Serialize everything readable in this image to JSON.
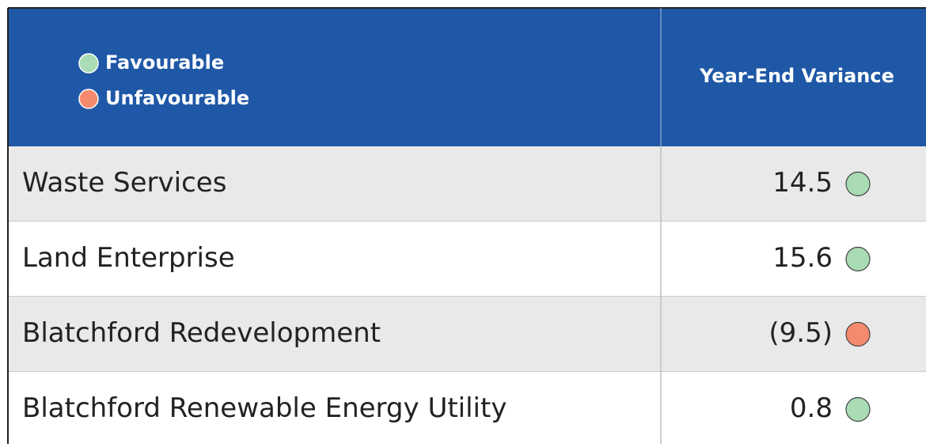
{
  "header": {
    "legend": [
      {
        "label": "Favourable",
        "color": "#a9dbb4"
      },
      {
        "label": "Unfavourable",
        "color": "#f58a6e"
      }
    ],
    "column": "Year-End Variance"
  },
  "table": {
    "rows": [
      {
        "name": "Waste Services",
        "value": "14.5",
        "color": "#a9dbb4"
      },
      {
        "name": "Land Enterprise",
        "value": "15.6",
        "color": "#a9dbb4"
      },
      {
        "name": "Blatchford Redevelopment",
        "value": "(9.5)",
        "color": "#f58a6e"
      },
      {
        "name": "Blatchford Renewable Energy Utility",
        "value": "0.8",
        "color": "#a9dbb4"
      }
    ]
  }
}
